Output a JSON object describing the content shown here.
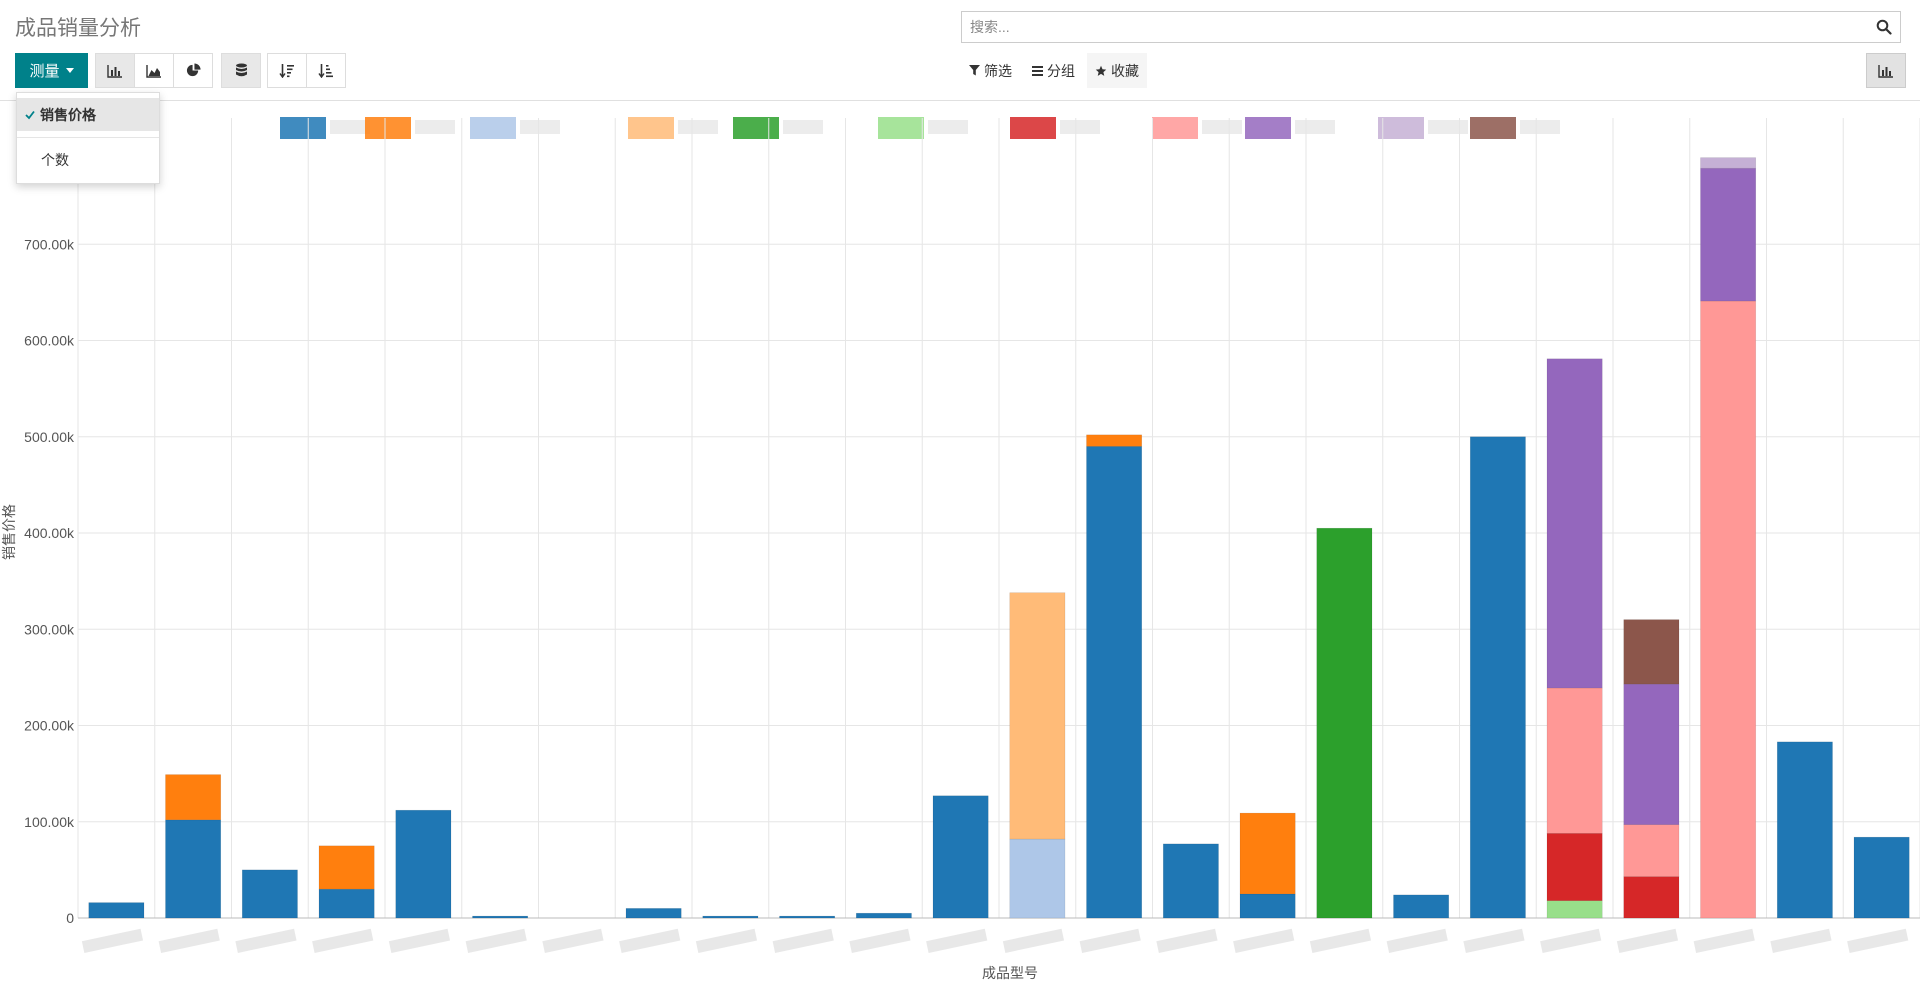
{
  "page": {
    "title": "成品销量分析"
  },
  "search": {
    "placeholder": "搜索..."
  },
  "toolbar": {
    "measure_label": "测量",
    "measure_options": [
      {
        "label": "销售价格",
        "selected": true
      },
      {
        "label": "个数",
        "selected": false
      }
    ]
  },
  "filters": {
    "filter_label": "筛选",
    "group_label": "分组",
    "favorites_label": "收藏"
  },
  "colors": {
    "accent": "#00818a",
    "palette": [
      "#1f77b4",
      "#ff7f0e",
      "#aec7e8",
      "#ffbb78",
      "#2ca02c",
      "#98df8a",
      "#d62728",
      "#ff9896",
      "#9467bd",
      "#c5b0d5",
      "#8c564b"
    ]
  },
  "chart_data": {
    "type": "bar",
    "stacked": true,
    "xlabel": "成品型号",
    "ylabel": "销售价格",
    "ylim": [
      0,
      800000
    ],
    "yticks": [
      {
        "value": 0,
        "label": "0"
      },
      {
        "value": 100000,
        "label": "100.00k"
      },
      {
        "value": 200000,
        "label": "200.00k"
      },
      {
        "value": 300000,
        "label": "300.00k"
      },
      {
        "value": 400000,
        "label": "400.00k"
      },
      {
        "value": 500000,
        "label": "500.00k"
      },
      {
        "value": 600000,
        "label": "600.00k"
      },
      {
        "value": 700000,
        "label": "700.00k"
      }
    ],
    "grid": true,
    "legend": "top",
    "category_count": 24,
    "series": [
      {
        "color": "#1f77b4",
        "values": [
          16000,
          102000,
          50000,
          30000,
          112000,
          2000,
          0,
          10000,
          2000,
          2000,
          5000,
          127000,
          0,
          490000,
          77000,
          25000,
          0,
          24000,
          500000,
          0,
          0,
          0,
          183000,
          84000
        ]
      },
      {
        "color": "#ff7f0e",
        "values": [
          0,
          47000,
          0,
          45000,
          0,
          0,
          0,
          0,
          0,
          0,
          0,
          0,
          0,
          12000,
          0,
          84000,
          0,
          0,
          0,
          0,
          0,
          0,
          0,
          0
        ]
      },
      {
        "color": "#aec7e8",
        "values": [
          0,
          0,
          0,
          0,
          0,
          0,
          0,
          0,
          0,
          0,
          0,
          0,
          82000,
          0,
          0,
          0,
          0,
          0,
          0,
          0,
          0,
          0,
          0,
          0
        ]
      },
      {
        "color": "#ffbb78",
        "values": [
          0,
          0,
          0,
          0,
          0,
          0,
          0,
          0,
          0,
          0,
          0,
          0,
          256000,
          0,
          0,
          0,
          0,
          0,
          0,
          0,
          0,
          0,
          0,
          0
        ]
      },
      {
        "color": "#2ca02c",
        "values": [
          0,
          0,
          0,
          0,
          0,
          0,
          0,
          0,
          0,
          0,
          0,
          0,
          0,
          0,
          0,
          0,
          405000,
          0,
          0,
          0,
          0,
          0,
          0,
          0
        ]
      },
      {
        "color": "#98df8a",
        "values": [
          0,
          0,
          0,
          0,
          0,
          0,
          0,
          0,
          0,
          0,
          0,
          0,
          0,
          0,
          0,
          0,
          0,
          0,
          0,
          18000,
          0,
          0,
          0,
          0
        ]
      },
      {
        "color": "#d62728",
        "values": [
          0,
          0,
          0,
          0,
          0,
          0,
          0,
          0,
          0,
          0,
          0,
          0,
          0,
          0,
          0,
          0,
          0,
          0,
          0,
          70000,
          43000,
          0,
          0,
          0
        ]
      },
      {
        "color": "#ff9896",
        "values": [
          0,
          0,
          0,
          0,
          0,
          0,
          0,
          0,
          0,
          0,
          0,
          0,
          0,
          0,
          0,
          0,
          0,
          0,
          0,
          151000,
          54000,
          641000,
          0,
          0
        ]
      },
      {
        "color": "#9467bd",
        "values": [
          0,
          0,
          0,
          0,
          0,
          0,
          0,
          0,
          0,
          0,
          0,
          0,
          0,
          0,
          0,
          0,
          0,
          0,
          0,
          342000,
          146000,
          138000,
          0,
          0
        ]
      },
      {
        "color": "#c5b0d5",
        "values": [
          0,
          0,
          0,
          0,
          0,
          0,
          0,
          0,
          0,
          0,
          0,
          0,
          0,
          0,
          0,
          0,
          0,
          0,
          0,
          0,
          0,
          11000,
          0,
          0
        ]
      },
      {
        "color": "#8c564b",
        "values": [
          0,
          0,
          0,
          0,
          0,
          0,
          0,
          0,
          0,
          0,
          0,
          0,
          0,
          0,
          0,
          0,
          0,
          0,
          0,
          0,
          67000,
          0,
          0,
          0
        ]
      }
    ]
  }
}
